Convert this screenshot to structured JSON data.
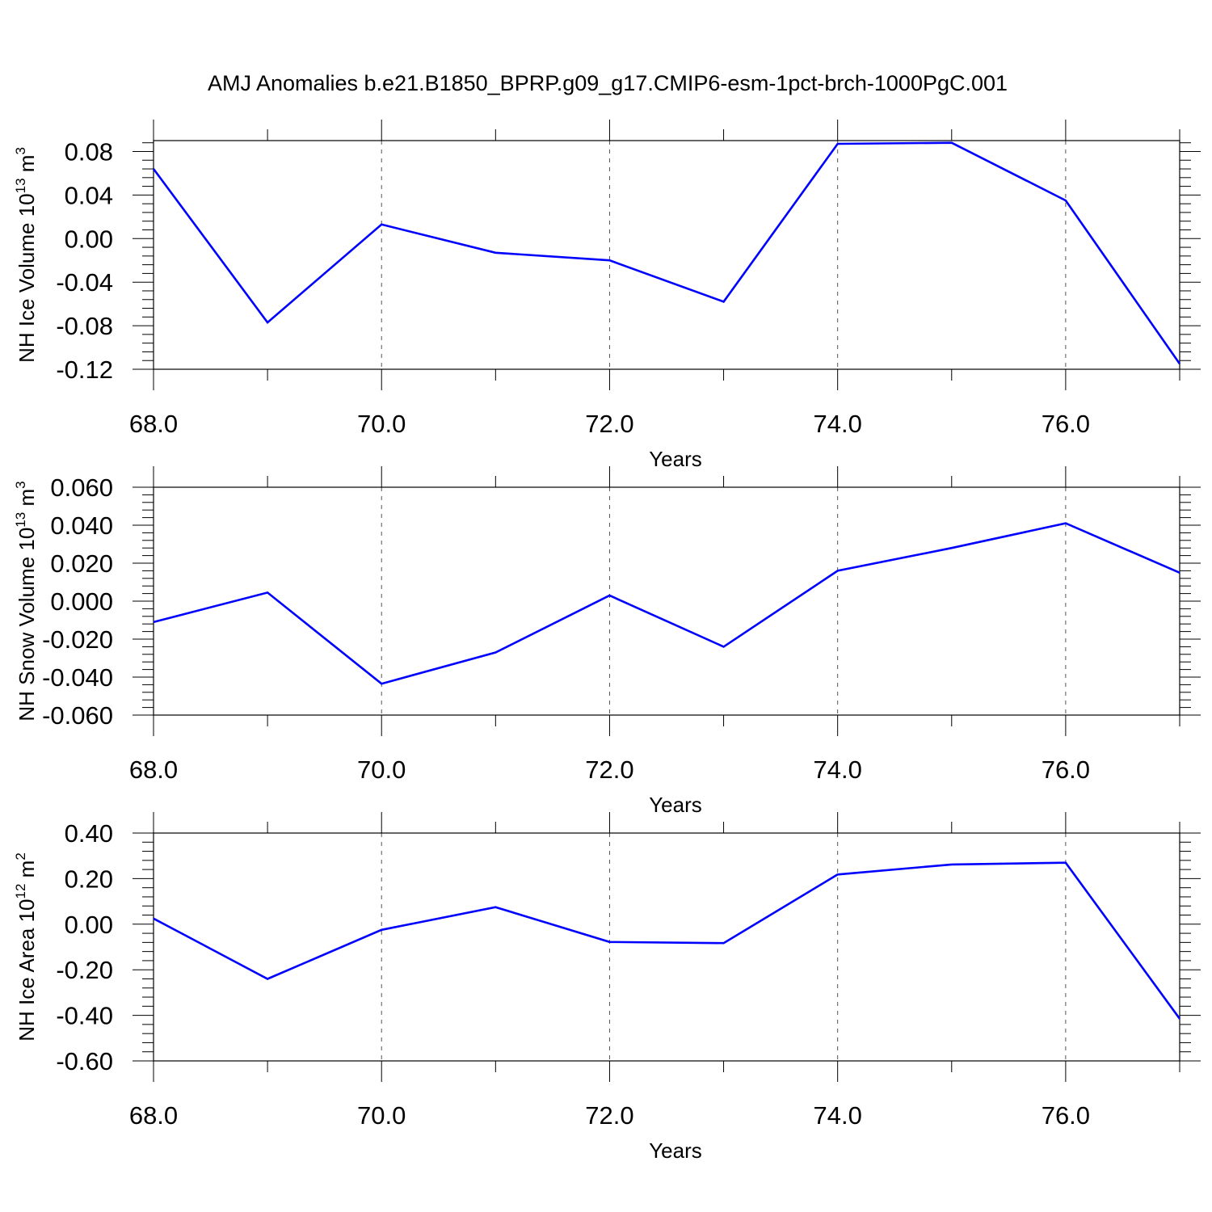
{
  "title": "AMJ Anomalies b.e21.B1850_BPRP.g09_g17.CMIP6-esm-1pct-brch-1000PgC.001",
  "chart_data": [
    {
      "type": "line",
      "ylabel": "NH Ice Volume",
      "yunit": {
        "base": "10",
        "exp": "13",
        "unit": "m",
        "unit_exp": "3"
      },
      "xlabel": "Years",
      "xlim": [
        68,
        77
      ],
      "ylim": [
        -0.12,
        0.09
      ],
      "yticks": [
        "0.08",
        "0.04",
        "0.00",
        "-0.04",
        "-0.08",
        "-0.12"
      ],
      "ytick_values": [
        0.08,
        0.04,
        0.0,
        -0.04,
        -0.08,
        -0.12
      ],
      "xticks": [
        "68.0",
        "70.0",
        "72.0",
        "74.0",
        "76.0"
      ],
      "xtick_values": [
        68,
        70,
        72,
        74,
        76
      ],
      "grid": "vertical dashed at major x ticks",
      "series": [
        {
          "color": "#0000ff",
          "x": [
            68,
            69,
            70,
            71,
            72,
            73,
            74,
            75,
            76,
            77
          ],
          "y": [
            0.064,
            -0.077,
            0.013,
            -0.013,
            -0.02,
            -0.058,
            0.087,
            0.088,
            0.035,
            -0.115
          ]
        }
      ]
    },
    {
      "type": "line",
      "ylabel": "NH Snow Volume",
      "yunit": {
        "base": "10",
        "exp": "13",
        "unit": "m",
        "unit_exp": "3"
      },
      "xlabel": "Years",
      "xlim": [
        68,
        77
      ],
      "ylim": [
        -0.06,
        0.06
      ],
      "yticks": [
        "0.060",
        "0.040",
        "0.020",
        "0.000",
        "-0.020",
        "-0.040",
        "-0.060"
      ],
      "ytick_values": [
        0.06,
        0.04,
        0.02,
        0.0,
        -0.02,
        -0.04,
        -0.06
      ],
      "xticks": [
        "68.0",
        "70.0",
        "72.0",
        "74.0",
        "76.0"
      ],
      "xtick_values": [
        68,
        70,
        72,
        74,
        76
      ],
      "grid": "vertical dashed at major x ticks",
      "series": [
        {
          "color": "#0000ff",
          "x": [
            68,
            69,
            70,
            71,
            72,
            73,
            74,
            75,
            76,
            77
          ],
          "y": [
            -0.011,
            0.0045,
            -0.0435,
            -0.027,
            0.003,
            -0.024,
            0.016,
            0.028,
            0.041,
            0.015
          ]
        }
      ]
    },
    {
      "type": "line",
      "ylabel": "NH Ice Area",
      "yunit": {
        "base": "10",
        "exp": "12",
        "unit": "m",
        "unit_exp": "2"
      },
      "xlabel": "Years",
      "xlim": [
        68,
        77
      ],
      "ylim": [
        -0.6,
        0.4
      ],
      "yticks": [
        "0.40",
        "0.20",
        "0.00",
        "-0.20",
        "-0.40",
        "-0.60"
      ],
      "ytick_values": [
        0.4,
        0.2,
        0.0,
        -0.2,
        -0.4,
        -0.6
      ],
      "xticks": [
        "68.0",
        "70.0",
        "72.0",
        "74.0",
        "76.0"
      ],
      "xtick_values": [
        68,
        70,
        72,
        74,
        76
      ],
      "grid": "vertical dashed at major x ticks",
      "series": [
        {
          "color": "#0000ff",
          "x": [
            68,
            69,
            70,
            71,
            72,
            73,
            74,
            75,
            76,
            77
          ],
          "y": [
            0.025,
            -0.24,
            -0.025,
            0.075,
            -0.078,
            -0.083,
            0.218,
            0.262,
            0.27,
            -0.415
          ]
        }
      ]
    }
  ]
}
